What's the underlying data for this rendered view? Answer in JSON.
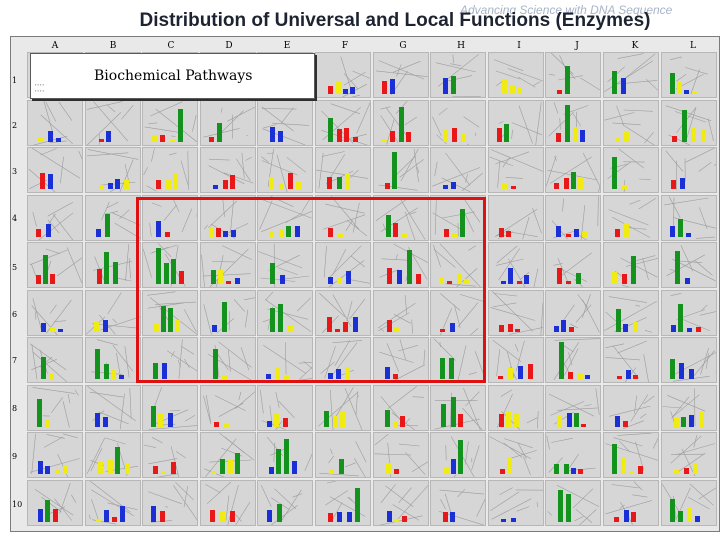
{
  "header": {
    "tagline": "Advancing Science with DNA Sequence",
    "title": "Distribution of Universal and Local Functions (Enzymes)"
  },
  "grid": {
    "columns": [
      "A",
      "B",
      "C",
      "D",
      "E",
      "F",
      "G",
      "H",
      "I",
      "J",
      "K",
      "L"
    ],
    "rows": [
      "1",
      "2",
      "3",
      "4",
      "5",
      "6",
      "7",
      "8",
      "9",
      "10"
    ]
  },
  "legend": {
    "label": "Biochemical Pathways"
  },
  "colors": {
    "red": "#e81818",
    "green": "#13921e",
    "blue": "#1a2fd6",
    "yellow": "#f0ec12",
    "highlight": "#e01010"
  }
}
